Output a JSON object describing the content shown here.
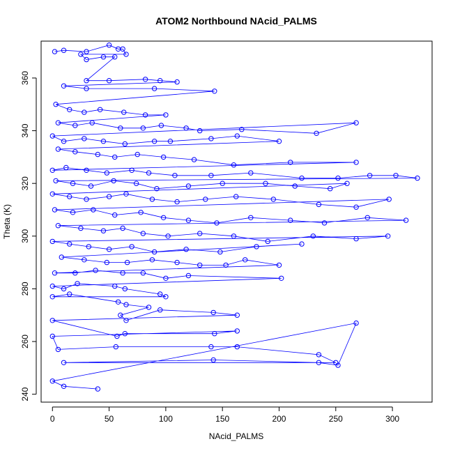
{
  "chart_data": {
    "type": "scatter",
    "title": "ATOM2 Northbound NAcid_PALMS",
    "xlabel": "NAcid_PALMS",
    "ylabel": "Theta (K)",
    "xlim": [
      -10,
      335
    ],
    "ylim": [
      237,
      374
    ],
    "xticks": [
      0,
      50,
      100,
      150,
      200,
      250,
      300
    ],
    "yticks": [
      240,
      260,
      280,
      300,
      320,
      340,
      360
    ],
    "grid": false,
    "colors": {
      "series": "#0000ff",
      "axis": "#000000",
      "background": "#ffffff"
    },
    "marker": "open-circle",
    "connected_by_lines": true,
    "series": [
      {
        "values": [
          [
            2,
            370
          ],
          [
            10,
            370.5
          ],
          [
            30,
            370
          ],
          [
            50,
            372.5
          ],
          [
            58,
            371
          ],
          [
            62,
            371
          ],
          [
            65,
            369
          ],
          [
            25,
            369
          ],
          [
            30,
            367
          ],
          [
            45,
            368
          ],
          [
            55,
            368
          ],
          [
            30,
            359
          ],
          [
            50,
            359
          ],
          [
            82,
            359.5
          ],
          [
            95,
            359
          ],
          [
            110,
            358.5
          ],
          [
            10,
            357
          ],
          [
            30,
            356
          ],
          [
            90,
            356
          ],
          [
            143,
            355
          ],
          [
            3,
            350
          ],
          [
            15,
            348
          ],
          [
            28,
            347
          ],
          [
            42,
            348
          ],
          [
            63,
            347
          ],
          [
            82,
            346
          ],
          [
            100,
            346
          ],
          [
            5,
            343
          ],
          [
            20,
            342
          ],
          [
            35,
            343
          ],
          [
            60,
            341
          ],
          [
            80,
            341
          ],
          [
            96,
            342
          ],
          [
            118,
            341
          ],
          [
            130,
            340
          ],
          [
            167,
            340.5
          ],
          [
            233,
            339
          ],
          [
            268,
            343
          ],
          [
            0,
            338
          ],
          [
            10,
            336
          ],
          [
            28,
            337
          ],
          [
            45,
            336
          ],
          [
            64,
            335
          ],
          [
            90,
            336
          ],
          [
            104,
            336
          ],
          [
            140,
            337
          ],
          [
            163,
            338
          ],
          [
            200,
            336
          ],
          [
            5,
            333
          ],
          [
            20,
            332
          ],
          [
            40,
            331
          ],
          [
            55,
            330
          ],
          [
            75,
            331
          ],
          [
            98,
            330
          ],
          [
            125,
            329
          ],
          [
            160,
            327
          ],
          [
            210,
            328
          ],
          [
            268,
            328
          ],
          [
            0,
            325
          ],
          [
            12,
            326
          ],
          [
            30,
            325
          ],
          [
            48,
            324
          ],
          [
            70,
            325
          ],
          [
            85,
            324
          ],
          [
            108,
            323
          ],
          [
            140,
            323
          ],
          [
            175,
            324
          ],
          [
            220,
            322
          ],
          [
            252,
            322
          ],
          [
            280,
            323
          ],
          [
            303,
            323
          ],
          [
            322,
            322
          ],
          [
            3,
            321
          ],
          [
            18,
            320
          ],
          [
            34,
            319
          ],
          [
            54,
            321
          ],
          [
            74,
            320
          ],
          [
            92,
            318
          ],
          [
            120,
            319
          ],
          [
            150,
            320
          ],
          [
            188,
            320
          ],
          [
            214,
            319
          ],
          [
            245,
            318
          ],
          [
            260,
            320
          ],
          [
            0,
            316
          ],
          [
            15,
            315
          ],
          [
            30,
            314
          ],
          [
            50,
            315
          ],
          [
            65,
            316
          ],
          [
            88,
            314
          ],
          [
            110,
            313
          ],
          [
            135,
            314
          ],
          [
            162,
            315
          ],
          [
            195,
            314
          ],
          [
            235,
            312
          ],
          [
            268,
            311
          ],
          [
            297,
            314
          ],
          [
            2,
            310
          ],
          [
            18,
            309
          ],
          [
            36,
            310
          ],
          [
            55,
            308
          ],
          [
            78,
            309
          ],
          [
            98,
            307
          ],
          [
            120,
            306
          ],
          [
            145,
            305
          ],
          [
            175,
            307
          ],
          [
            210,
            306
          ],
          [
            240,
            305
          ],
          [
            278,
            307
          ],
          [
            312,
            306
          ],
          [
            5,
            304
          ],
          [
            25,
            303
          ],
          [
            45,
            302
          ],
          [
            62,
            303
          ],
          [
            80,
            301
          ],
          [
            102,
            300
          ],
          [
            130,
            301
          ],
          [
            160,
            300
          ],
          [
            190,
            298
          ],
          [
            230,
            300
          ],
          [
            268,
            299
          ],
          [
            296,
            300
          ],
          [
            0,
            298
          ],
          [
            15,
            297
          ],
          [
            32,
            296
          ],
          [
            50,
            295
          ],
          [
            70,
            296
          ],
          [
            90,
            294
          ],
          [
            118,
            295
          ],
          [
            148,
            294
          ],
          [
            180,
            296
          ],
          [
            220,
            297
          ],
          [
            8,
            292
          ],
          [
            28,
            291
          ],
          [
            48,
            290
          ],
          [
            66,
            290
          ],
          [
            88,
            291
          ],
          [
            110,
            290
          ],
          [
            130,
            289
          ],
          [
            153,
            289
          ],
          [
            170,
            291
          ],
          [
            200,
            289
          ],
          [
            2,
            286
          ],
          [
            20,
            286
          ],
          [
            38,
            287
          ],
          [
            62,
            286
          ],
          [
            80,
            286
          ],
          [
            100,
            284
          ],
          [
            120,
            285
          ],
          [
            202,
            284
          ],
          [
            0,
            281
          ],
          [
            10,
            280
          ],
          [
            22,
            282
          ],
          [
            55,
            281
          ],
          [
            64,
            280
          ],
          [
            95,
            278
          ],
          [
            100,
            277
          ],
          [
            0,
            277
          ],
          [
            15,
            278
          ],
          [
            58,
            275
          ],
          [
            65,
            274
          ],
          [
            85,
            273
          ],
          [
            60,
            270
          ],
          [
            65,
            268
          ],
          [
            95,
            272
          ],
          [
            142,
            271
          ],
          [
            163,
            270
          ],
          [
            0,
            268
          ],
          [
            57,
            262
          ],
          [
            64,
            263
          ],
          [
            143,
            263
          ],
          [
            163,
            264
          ],
          [
            0,
            262
          ],
          [
            5,
            257
          ],
          [
            56,
            258
          ],
          [
            140,
            258
          ],
          [
            163,
            258
          ],
          [
            235,
            255
          ],
          [
            250,
            252
          ],
          [
            10,
            252
          ],
          [
            142,
            253
          ],
          [
            235,
            252
          ],
          [
            252,
            251
          ],
          [
            268,
            267
          ],
          [
            0,
            245
          ],
          [
            10,
            243
          ],
          [
            40,
            242
          ]
        ]
      }
    ]
  }
}
